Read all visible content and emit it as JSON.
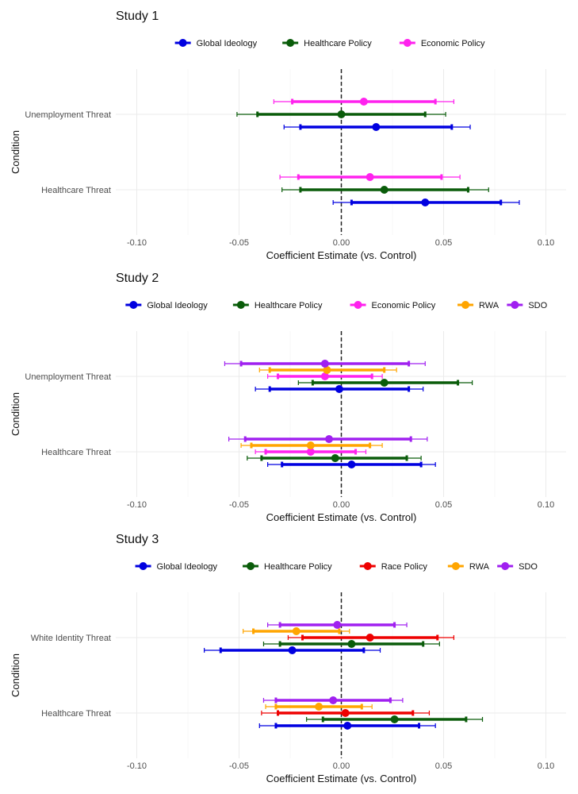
{
  "colors": {
    "Global Ideology": "#0000e0",
    "Healthcare Policy": "#0a5c0a",
    "Economic Policy": "#ff22ee",
    "Race Policy": "#ee0000",
    "RWA": "#ffa500",
    "SDO": "#a020f0"
  },
  "chart_data": [
    {
      "type": "forest",
      "title": "Study 1",
      "xlabel": "Coefficient Estimate (vs. Control)",
      "ylabel": "Condition",
      "xlim": [
        -0.1,
        0.1
      ],
      "xticks": [
        "-0.10",
        "-0.05",
        "0.00",
        "0.05",
        "0.10"
      ],
      "legend": [
        "Global Ideology",
        "Healthcare Policy",
        "Economic Policy"
      ],
      "conditions": [
        "Unemployment Threat",
        "Healthcare Threat"
      ],
      "series": [
        {
          "name": "Global Ideology",
          "estimates": [
            {
              "condition": "Unemployment Threat",
              "est": 0.017,
              "lo68": -0.02,
              "hi68": 0.054,
              "lo95": -0.028,
              "hi95": 0.063
            },
            {
              "condition": "Healthcare Threat",
              "est": 0.041,
              "lo68": 0.005,
              "hi68": 0.078,
              "lo95": -0.004,
              "hi95": 0.087
            }
          ]
        },
        {
          "name": "Healthcare Policy",
          "estimates": [
            {
              "condition": "Unemployment Threat",
              "est": 0.0,
              "lo68": -0.041,
              "hi68": 0.041,
              "lo95": -0.051,
              "hi95": 0.051
            },
            {
              "condition": "Healthcare Threat",
              "est": 0.021,
              "lo68": -0.02,
              "hi68": 0.062,
              "lo95": -0.029,
              "hi95": 0.072
            }
          ]
        },
        {
          "name": "Economic Policy",
          "estimates": [
            {
              "condition": "Unemployment Threat",
              "est": 0.011,
              "lo68": -0.024,
              "hi68": 0.046,
              "lo95": -0.033,
              "hi95": 0.055
            },
            {
              "condition": "Healthcare Threat",
              "est": 0.014,
              "lo68": -0.021,
              "hi68": 0.049,
              "lo95": -0.03,
              "hi95": 0.058
            }
          ]
        }
      ]
    },
    {
      "type": "forest",
      "title": "Study 2",
      "xlabel": "Coefficient Estimate (vs. Control)",
      "ylabel": "Condition",
      "xlim": [
        -0.1,
        0.1
      ],
      "xticks": [
        "-0.10",
        "-0.05",
        "0.00",
        "0.05",
        "0.10"
      ],
      "legend": [
        "Global Ideology",
        "Healthcare Policy",
        "Economic Policy",
        "RWA",
        "SDO"
      ],
      "conditions": [
        "Unemployment Threat",
        "Healthcare Threat"
      ],
      "series": [
        {
          "name": "Global Ideology",
          "estimates": [
            {
              "condition": "Unemployment Threat",
              "est": -0.001,
              "lo68": -0.035,
              "hi68": 0.033,
              "lo95": -0.042,
              "hi95": 0.04
            },
            {
              "condition": "Healthcare Threat",
              "est": 0.005,
              "lo68": -0.029,
              "hi68": 0.039,
              "lo95": -0.036,
              "hi95": 0.046
            }
          ]
        },
        {
          "name": "Healthcare Policy",
          "estimates": [
            {
              "condition": "Unemployment Threat",
              "est": 0.021,
              "lo68": -0.014,
              "hi68": 0.057,
              "lo95": -0.021,
              "hi95": 0.064
            },
            {
              "condition": "Healthcare Threat",
              "est": -0.003,
              "lo68": -0.039,
              "hi68": 0.032,
              "lo95": -0.046,
              "hi95": 0.039
            }
          ]
        },
        {
          "name": "Economic Policy",
          "estimates": [
            {
              "condition": "Unemployment Threat",
              "est": -0.008,
              "lo68": -0.031,
              "hi68": 0.015,
              "lo95": -0.036,
              "hi95": 0.02
            },
            {
              "condition": "Healthcare Threat",
              "est": -0.015,
              "lo68": -0.037,
              "hi68": 0.007,
              "lo95": -0.042,
              "hi95": 0.012
            }
          ]
        },
        {
          "name": "RWA",
          "estimates": [
            {
              "condition": "Unemployment Threat",
              "est": -0.007,
              "lo68": -0.035,
              "hi68": 0.021,
              "lo95": -0.04,
              "hi95": 0.027
            },
            {
              "condition": "Healthcare Threat",
              "est": -0.015,
              "lo68": -0.044,
              "hi68": 0.014,
              "lo95": -0.049,
              "hi95": 0.02
            }
          ]
        },
        {
          "name": "SDO",
          "estimates": [
            {
              "condition": "Unemployment Threat",
              "est": -0.008,
              "lo68": -0.049,
              "hi68": 0.033,
              "lo95": -0.057,
              "hi95": 0.041
            },
            {
              "condition": "Healthcare Threat",
              "est": -0.006,
              "lo68": -0.047,
              "hi68": 0.034,
              "lo95": -0.055,
              "hi95": 0.042
            }
          ]
        }
      ]
    },
    {
      "type": "forest",
      "title": "Study 3",
      "xlabel": "Coefficient Estimate (vs. Control)",
      "ylabel": "Condition",
      "xlim": [
        -0.1,
        0.1
      ],
      "xticks": [
        "-0.10",
        "-0.05",
        "0.00",
        "0.05",
        "0.10"
      ],
      "legend": [
        "Global Ideology",
        "Healthcare Policy",
        "Race Policy",
        "RWA",
        "SDO"
      ],
      "conditions": [
        "White Identity Threat",
        "Healthcare Threat"
      ],
      "series": [
        {
          "name": "Global Ideology",
          "estimates": [
            {
              "condition": "White Identity Threat",
              "est": -0.024,
              "lo68": -0.059,
              "hi68": 0.011,
              "lo95": -0.067,
              "hi95": 0.019
            },
            {
              "condition": "Healthcare Threat",
              "est": 0.003,
              "lo68": -0.032,
              "hi68": 0.038,
              "lo95": -0.04,
              "hi95": 0.046
            }
          ]
        },
        {
          "name": "Healthcare Policy",
          "estimates": [
            {
              "condition": "White Identity Threat",
              "est": 0.005,
              "lo68": -0.03,
              "hi68": 0.04,
              "lo95": -0.038,
              "hi95": 0.048
            },
            {
              "condition": "Healthcare Threat",
              "est": 0.026,
              "lo68": -0.009,
              "hi68": 0.061,
              "lo95": -0.017,
              "hi95": 0.069
            }
          ]
        },
        {
          "name": "Race Policy",
          "estimates": [
            {
              "condition": "White Identity Threat",
              "est": 0.014,
              "lo68": -0.019,
              "hi68": 0.047,
              "lo95": -0.026,
              "hi95": 0.055
            },
            {
              "condition": "Healthcare Threat",
              "est": 0.002,
              "lo68": -0.031,
              "hi68": 0.035,
              "lo95": -0.039,
              "hi95": 0.043
            }
          ]
        },
        {
          "name": "RWA",
          "estimates": [
            {
              "condition": "White Identity Threat",
              "est": -0.022,
              "lo68": -0.043,
              "hi68": -0.001,
              "lo95": -0.048,
              "hi95": 0.004
            },
            {
              "condition": "Healthcare Threat",
              "est": -0.011,
              "lo68": -0.032,
              "hi68": 0.01,
              "lo95": -0.037,
              "hi95": 0.015
            }
          ]
        },
        {
          "name": "SDO",
          "estimates": [
            {
              "condition": "White Identity Threat",
              "est": -0.002,
              "lo68": -0.03,
              "hi68": 0.026,
              "lo95": -0.036,
              "hi95": 0.032
            },
            {
              "condition": "Healthcare Threat",
              "est": -0.004,
              "lo68": -0.032,
              "hi68": 0.024,
              "lo95": -0.038,
              "hi95": 0.03
            }
          ]
        }
      ]
    }
  ]
}
